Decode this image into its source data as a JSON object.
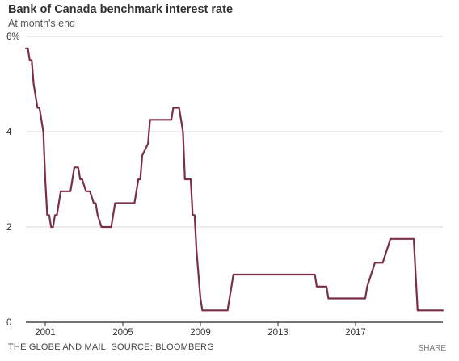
{
  "title": "Bank of Canada benchmark interest rate",
  "subtitle": "At month's end",
  "source": "THE GLOBE AND MAIL, SOURCE: BLOOMBERG",
  "share_label": "SHARE",
  "colors": {
    "line": "#7b2d4a",
    "grid": "#d9d9d9",
    "axis": "#222222"
  },
  "chart_data": {
    "type": "line",
    "title": "Bank of Canada benchmark interest rate",
    "subtitle": "At month's end",
    "xlabel": "",
    "ylabel": "",
    "ylim": [
      0,
      6
    ],
    "xlim": [
      2000.0,
      2021.5
    ],
    "y_ticks": [
      0,
      2,
      4,
      6
    ],
    "y_tick_labels": [
      "0",
      "2",
      "4",
      "6%"
    ],
    "x_ticks": [
      2001,
      2005,
      2009,
      2013,
      2017
    ],
    "x_tick_labels": [
      "2001",
      "2005",
      "2009",
      "2013",
      "2017"
    ],
    "grid": true,
    "series": [
      {
        "x": [
          2000.0,
          2000.1,
          2000.2,
          2000.3,
          2000.4,
          2000.5,
          2000.6,
          2000.7,
          2000.8,
          2000.9,
          2001.0,
          2001.1,
          2001.2,
          2001.3,
          2001.4,
          2001.5,
          2001.6,
          2001.7,
          2001.8,
          2001.9,
          2002.0,
          2002.2,
          2002.3,
          2002.5,
          2002.7,
          2002.8,
          2002.9,
          2003.1,
          2003.2,
          2003.3,
          2003.5,
          2003.6,
          2003.7,
          2003.9,
          2004.0,
          2004.4,
          2004.6,
          2005.0,
          2005.6,
          2005.7,
          2005.8,
          2005.9,
          2006.0,
          2006.3,
          2006.4,
          2007.0,
          2007.5,
          2007.6,
          2007.9,
          2008.0,
          2008.1,
          2008.2,
          2008.5,
          2008.6,
          2008.7,
          2008.8,
          2008.9,
          2009.0,
          2009.1,
          2009.2,
          2009.3,
          2009.4,
          2010.4,
          2010.5,
          2010.6,
          2010.7,
          2014.9,
          2015.0,
          2015.5,
          2015.6,
          2016.0,
          2017.5,
          2017.6,
          2017.8,
          2018.0,
          2018.4,
          2018.6,
          2018.8,
          2020.0,
          2020.2,
          2021.5
        ],
        "y": [
          5.75,
          5.75,
          5.5,
          5.5,
          5.0,
          4.75,
          4.5,
          4.5,
          4.25,
          4.0,
          3.0,
          2.25,
          2.25,
          2.0,
          2.0,
          2.25,
          2.25,
          2.5,
          2.75,
          2.75,
          2.75,
          2.75,
          2.75,
          3.25,
          3.25,
          3.0,
          3.0,
          2.75,
          2.75,
          2.75,
          2.5,
          2.5,
          2.25,
          2.0,
          2.0,
          2.0,
          2.5,
          2.5,
          2.5,
          2.75,
          3.0,
          3.0,
          3.5,
          3.75,
          4.25,
          4.25,
          4.25,
          4.5,
          4.5,
          4.25,
          4.0,
          3.0,
          3.0,
          2.25,
          2.25,
          1.5,
          1.0,
          0.5,
          0.25,
          0.25,
          0.25,
          0.25,
          0.25,
          0.5,
          0.75,
          1.0,
          1.0,
          0.75,
          0.75,
          0.5,
          0.5,
          0.5,
          0.75,
          1.0,
          1.25,
          1.25,
          1.5,
          1.75,
          1.75,
          0.25,
          0.25
        ]
      }
    ]
  }
}
